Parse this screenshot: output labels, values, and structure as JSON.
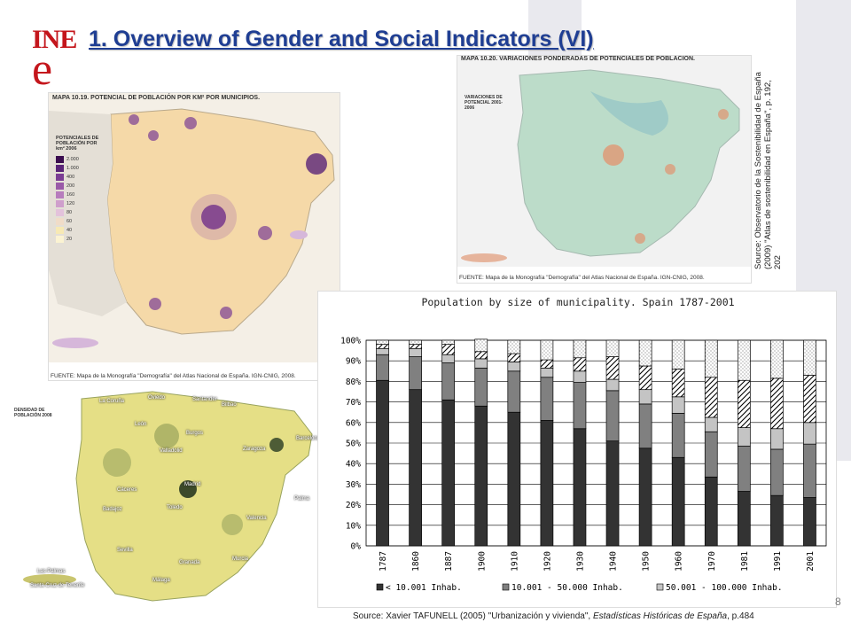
{
  "slide": {
    "title": "1. Overview of Gender and Social Indicators (VI)",
    "page_number": "8",
    "side_source": "Source: Observatorio de la Sostenibilidad de España (2009) \"Atlas de sostenibilidad en España\", p. 192, 202",
    "bottom_source": {
      "prefix": "Source: Xavier TAFUNELL (2005) \"Urbanización y vivienda\", ",
      "italic": "Estadísticas Históricas de España",
      "suffix": ", p.484"
    },
    "colors": {
      "title": "#1f3e93",
      "logo": "#c4161c",
      "background_shapes": "#e9e9ee"
    }
  },
  "logo": {
    "top": "INE",
    "bottom": "e"
  },
  "maps": {
    "potential": {
      "caption": "MAPA 10.19. POTENCIAL DE POBLACIÓN POR KM² POR MUNICIPIOS.",
      "legend_title": "POTENCIALES DE POBLACIÓN POR km² 2006",
      "legend_values": [
        "2.000",
        "1.000",
        "400",
        "200",
        "160",
        "120",
        "80",
        "60",
        "40",
        "20"
      ],
      "legend_colors": [
        "#3b0d4f",
        "#5a2478",
        "#7b3d94",
        "#9a5aa8",
        "#b77dbd",
        "#cf9fcc",
        "#e3c2db",
        "#f0dcc8",
        "#f7e9b4",
        "#fbf3d2"
      ],
      "source": "FUENTE: Mapa de la Monografía \"Demografía\" del Atlas Nacional de España. IGN-CNIG, 2008."
    },
    "variation": {
      "caption": "MAPA 10.20. VARIACIONES PONDERADAS DE POTENCIALES DE POBLACIÓN.",
      "legend_title": "VARIACIONES DE POTENCIAL 2001-2006",
      "source": "FUENTE: Mapa de la Monografía \"Demografía\" del Atlas Nacional de España. IGN-CNIG, 2008."
    },
    "density": {
      "legend_title": "DENSIDAD DE POBLACIÓN 2008",
      "city_labels": [
        "La Coruña",
        "Oviedo",
        "Santander",
        "Bilbao",
        "León",
        "Burgos",
        "Valladolid",
        "Zaragoza",
        "Barcelona",
        "Madrid",
        "Toledo",
        "Valencia",
        "Sevilla",
        "Málaga",
        "Murcia",
        "Granada",
        "Badajoz",
        "Cáceres",
        "Palma",
        "Las Palmas",
        "Santa Cruz de Tenerife"
      ]
    }
  },
  "chart_data": {
    "type": "bar",
    "stacked": true,
    "title": "Population by size of municipality. Spain 1787-2001",
    "xlabel": "",
    "ylabel": "",
    "ylim": [
      0,
      100
    ],
    "yticks": [
      "0%",
      "10%",
      "20%",
      "30%",
      "40%",
      "50%",
      "60%",
      "70%",
      "80%",
      "90%",
      "100%"
    ],
    "categories": [
      "1787",
      "1860",
      "1887",
      "1900",
      "1910",
      "1920",
      "1930",
      "1940",
      "1950",
      "1960",
      "1970",
      "1981",
      "1991",
      "2001"
    ],
    "series": [
      {
        "name": "< 10.001 Inhab.",
        "values": [
          80.5,
          76,
          71,
          68,
          65,
          61,
          57,
          51,
          47.5,
          43,
          33.5,
          26.5,
          24.5,
          23.5
        ],
        "fill": "#333333"
      },
      {
        "name": "10.001 - 50.000 Inhab.",
        "values": [
          12.5,
          16,
          18,
          18.5,
          20,
          21,
          22.5,
          24.5,
          21.5,
          21.5,
          22,
          22,
          22.5,
          26
        ],
        "fill": "#808080"
      },
      {
        "name": "50.001 - 100.000 Inhab.",
        "values": [
          3,
          4,
          4,
          4.5,
          4.5,
          4.5,
          5.5,
          5.5,
          7,
          8,
          7,
          9,
          10,
          10.5
        ],
        "fill": "#c4c4c4"
      },
      {
        "name": "",
        "values": [
          2,
          2,
          5,
          3.5,
          4,
          4,
          6.5,
          11,
          11.5,
          13.5,
          19.5,
          23,
          24.5,
          23
        ],
        "fill": "hatch"
      },
      {
        "name": "",
        "values": [
          2,
          2,
          2,
          6,
          6.5,
          9.5,
          8.5,
          8,
          12.5,
          14,
          18,
          19.5,
          18.5,
          17
        ],
        "fill": "dots"
      }
    ],
    "legend_position": "bottom",
    "grid": true
  }
}
